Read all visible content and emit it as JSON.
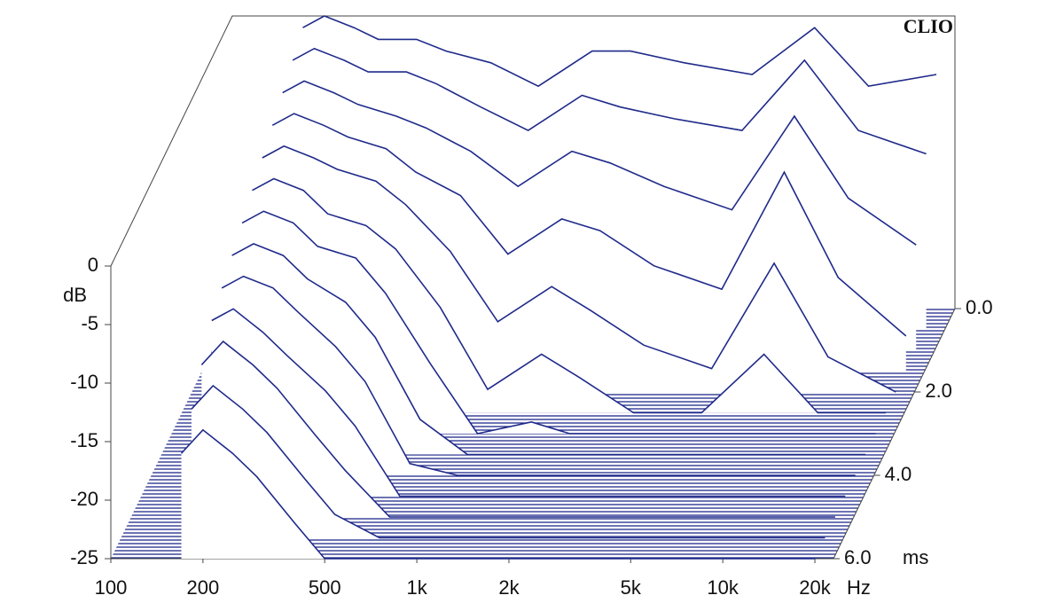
{
  "chart_data": {
    "type": "waterfall",
    "annotation": "CLIO",
    "x_label": "Hz",
    "y_label": "dB",
    "z_label": "ms",
    "log_x": true,
    "color": "#1f2a8a",
    "x": [
      170,
      200,
      250,
      300,
      400,
      500,
      700,
      1000,
      1500,
      2000,
      3000,
      5000,
      8000,
      12000,
      20000
    ],
    "xlim": [
      100,
      23000
    ],
    "xticks": [
      {
        "value": 100,
        "label": "100"
      },
      {
        "value": 200,
        "label": "200"
      },
      {
        "value": 500,
        "label": "500"
      },
      {
        "value": 1000,
        "label": "1k"
      },
      {
        "value": 2000,
        "label": "2k"
      },
      {
        "value": 5000,
        "label": "5k"
      },
      {
        "value": 10000,
        "label": "10k"
      },
      {
        "value": 20000,
        "label": "20k"
      }
    ],
    "ylim": [
      -25,
      0
    ],
    "yticks": [
      0,
      -5,
      -10,
      -15,
      -20,
      -25
    ],
    "zlim": [
      0,
      6
    ],
    "zticks": [
      {
        "value": 0,
        "label": "0.0"
      },
      {
        "value": 2,
        "label": "2.0"
      },
      {
        "value": 4,
        "label": "4.0"
      },
      {
        "value": 6,
        "label": "6.0"
      }
    ],
    "slices": [
      {
        "time": 0,
        "values": [
          -1,
          0,
          -1,
          -2,
          -2,
          -3,
          -4,
          -6,
          -3,
          -3,
          -4,
          -5,
          -1,
          -6,
          -5
        ]
      },
      {
        "time": 0.5,
        "values": [
          -2,
          -1,
          -2,
          -3,
          -3,
          -4,
          -6,
          -8,
          -5,
          -6,
          -7,
          -8,
          -2,
          -8,
          -10
        ]
      },
      {
        "time": 1,
        "values": [
          -3,
          -2,
          -3,
          -4,
          -5,
          -6,
          -8,
          -11,
          -8,
          -9,
          -11,
          -13,
          -5,
          -12,
          -16
        ]
      },
      {
        "time": 1.5,
        "values": [
          -4,
          -3,
          -4,
          -5,
          -6,
          -8,
          -10,
          -15,
          -12,
          -13,
          -16,
          -18,
          -8,
          -17,
          -22
        ]
      },
      {
        "time": 2,
        "values": [
          -5,
          -4,
          -5,
          -6,
          -7,
          -9,
          -13,
          -19,
          -16,
          -18,
          -21,
          -23,
          -14,
          -22,
          -25
        ]
      },
      {
        "time": 2.5,
        "values": [
          -6,
          -5,
          -6,
          -8,
          -9,
          -11,
          -16,
          -23,
          -20,
          -22,
          -25,
          -25,
          -20,
          -25,
          -25
        ]
      },
      {
        "time": 3,
        "values": [
          -7,
          -6,
          -7,
          -9,
          -10,
          -13,
          -19,
          -25,
          -24,
          -25,
          -25,
          -25,
          -25,
          -25,
          -25
        ]
      },
      {
        "time": 3.5,
        "values": [
          -8,
          -7,
          -8,
          -10,
          -12,
          -15,
          -22,
          -25,
          -25,
          -25,
          -25,
          -25,
          -25,
          -25,
          -25
        ]
      },
      {
        "time": 4,
        "values": [
          -9,
          -8,
          -9,
          -11,
          -14,
          -17,
          -24,
          -25,
          -25,
          -25,
          -25,
          -25,
          -25,
          -25,
          -25
        ]
      },
      {
        "time": 4.5,
        "values": [
          -10,
          -9,
          -11,
          -13,
          -16,
          -19,
          -25,
          -25,
          -25,
          -25,
          -25,
          -25,
          -25,
          -25,
          -25
        ]
      },
      {
        "time": 5,
        "values": [
          -12,
          -10,
          -12,
          -14,
          -18,
          -21,
          -25,
          -25,
          -25,
          -25,
          -25,
          -25,
          -25,
          -25,
          -25
        ]
      },
      {
        "time": 5.5,
        "values": [
          -14,
          -12,
          -14,
          -16,
          -20,
          -23,
          -25,
          -25,
          -25,
          -25,
          -25,
          -25,
          -25,
          -25,
          -25
        ]
      },
      {
        "time": 6,
        "values": [
          -16,
          -14,
          -16,
          -18,
          -22,
          -25,
          -25,
          -25,
          -25,
          -25,
          -25,
          -25,
          -25,
          -25,
          -25
        ]
      }
    ]
  }
}
